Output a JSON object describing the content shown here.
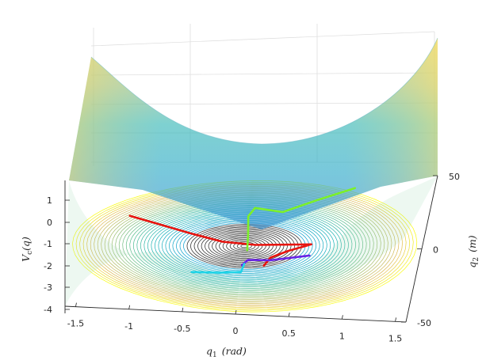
{
  "chart_data": {
    "type": "surface_with_contours_and_trajectories",
    "x_axis": {
      "label": "q_1  (rad)",
      "ticks": [
        "-1.5",
        "-1",
        "-0.5",
        "0",
        "0.5",
        "1",
        "1.5"
      ],
      "range": [
        -1.6,
        1.6
      ]
    },
    "y_axis": {
      "label": "q_2  (m)",
      "ticks": [
        "-50",
        "0",
        "50"
      ],
      "range": [
        -50,
        50
      ]
    },
    "z_axis": {
      "label": "V_c(q)",
      "ticks": [
        "1",
        "0",
        "-1",
        "-2",
        "-3",
        "-4"
      ]
    },
    "surface": {
      "shape": "bowl",
      "minimum": [
        0,
        0
      ],
      "colormap": "parula",
      "grid": true
    },
    "trajectories": [
      {
        "color": "#e8140f",
        "points": [
          [
            -1.05,
            22
          ],
          [
            -0.8,
            16
          ],
          [
            -0.5,
            9
          ],
          [
            -0.2,
            3
          ],
          [
            0.1,
            1
          ],
          [
            0.6,
            2
          ],
          [
            0.4,
            -3
          ],
          [
            0.25,
            -8
          ],
          [
            0.2,
            -14
          ]
        ]
      },
      {
        "color": "#7cf02a",
        "points": [
          [
            0.9,
            42
          ],
          [
            0.6,
            34
          ],
          [
            0.3,
            25
          ],
          [
            0.05,
            28
          ],
          [
            0.0,
            22
          ],
          [
            0.02,
            8
          ],
          [
            0.03,
            -3
          ]
        ]
      },
      {
        "color": "#6a23e6",
        "points": [
          [
            0.6,
            -6
          ],
          [
            0.25,
            -10
          ],
          [
            0.05,
            -10
          ],
          [
            0.0,
            -14
          ]
        ]
      },
      {
        "color": "#1ed4e8",
        "points": [
          [
            -0.45,
            -20
          ],
          [
            -0.2,
            -20
          ],
          [
            0.0,
            -19
          ],
          [
            0.02,
            -13
          ]
        ]
      }
    ]
  }
}
